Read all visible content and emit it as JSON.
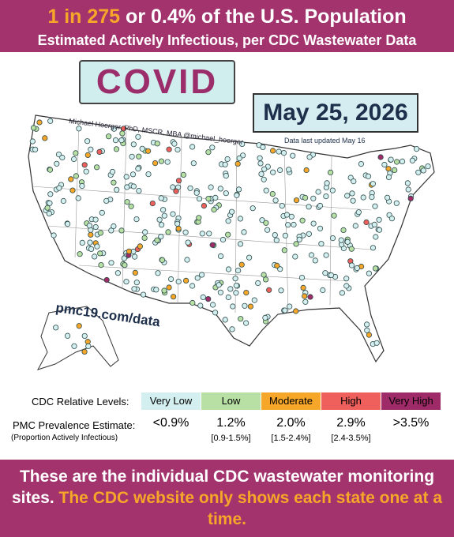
{
  "header": {
    "highlight": "1 in 275",
    "title": "or 0.4% of the U.S. Population",
    "subtitle": "Estimated Actively Infectious, per CDC Wastewater Data"
  },
  "labels": {
    "disease": "COVID",
    "date": "May 25, 2026",
    "updated": "Data last updated May 16",
    "author": "Michael Hoerger, PhD, MSCR, MBA  @michael_hoerger",
    "website": "pmc19.com/data"
  },
  "legend": {
    "title": "CDC Relative Levels:",
    "estimate_title": "PMC Prevalence Estimate:",
    "estimate_subtitle": "(Proportion Actively Infectious)",
    "levels": [
      {
        "name": "Very Low",
        "color": "#d3eff0",
        "estimate": "<0.9%",
        "range": null
      },
      {
        "name": "Low",
        "color": "#b8e0a4",
        "estimate": "1.2%",
        "range": "[0.9-1.5%]"
      },
      {
        "name": "Moderate",
        "color": "#f6a629",
        "estimate": "2.0%",
        "range": "[1.5-2.4%]"
      },
      {
        "name": "High",
        "color": "#ef5f5b",
        "estimate": "2.9%",
        "range": "[2.4-3.5%]"
      },
      {
        "name": "Very High",
        "color": "#9e2b68",
        "estimate": ">3.5%",
        "range": null
      }
    ]
  },
  "footer": {
    "text": "These are the individual CDC wastewater monitoring sites.",
    "highlight": "The CDC website only shows each state one at a time."
  }
}
